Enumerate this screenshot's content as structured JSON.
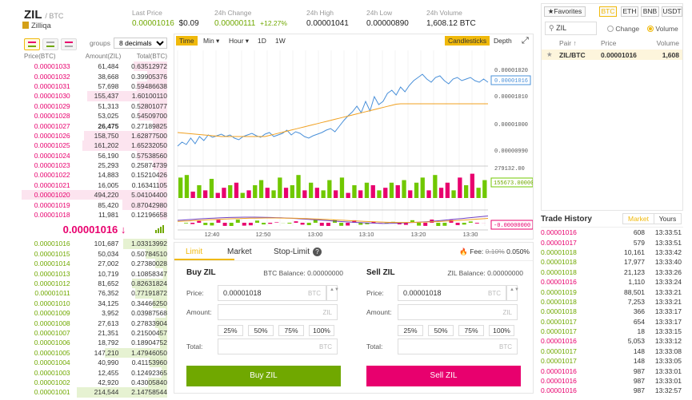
{
  "header": {
    "symbol": "ZIL",
    "quote": "/ BTC",
    "name": "Zilliqa",
    "stats": [
      {
        "label": "Last Price",
        "value": "0.00001016",
        "extra": "$0.09",
        "color": "green"
      },
      {
        "label": "24h Change",
        "value": "0.00000111",
        "extra": "+12.27%",
        "color": "green"
      },
      {
        "label": "24h High",
        "value": "0.00001041",
        "extra": "",
        "color": ""
      },
      {
        "label": "24h Low",
        "value": "0.00000890",
        "extra": "",
        "color": ""
      },
      {
        "label": "24h Volume",
        "value": "1,608.12 BTC",
        "extra": "",
        "color": ""
      }
    ]
  },
  "orderbook": {
    "groups_label": "groups",
    "groups_value": "8 decimals",
    "headers": [
      "Price(BTC)",
      "Amount(ZIL)",
      "Total(BTC)"
    ],
    "asks": [
      [
        "0.00001033",
        "61,484",
        "0.63512972"
      ],
      [
        "0.00001032",
        "38,668",
        "0.39905376"
      ],
      [
        "0.00001031",
        "57,698",
        "0.59486638"
      ],
      [
        "0.00001030",
        "155,437",
        "1.60100110"
      ],
      [
        "0.00001029",
        "51,313",
        "0.52801077"
      ],
      [
        "0.00001028",
        "53,025",
        "0.54509700"
      ],
      [
        "0.00001027",
        "26,475",
        "0.27189825"
      ],
      [
        "0.00001026",
        "158,750",
        "1.62877500"
      ],
      [
        "0.00001025",
        "161,202",
        "1.65232050"
      ],
      [
        "0.00001024",
        "56,190",
        "0.57538560"
      ],
      [
        "0.00001023",
        "25,293",
        "0.25874739"
      ],
      [
        "0.00001022",
        "14,883",
        "0.15210426"
      ],
      [
        "0.00001021",
        "16,005",
        "0.16341105"
      ],
      [
        "0.00001020",
        "494,220",
        "5.04104400"
      ],
      [
        "0.00001019",
        "85,420",
        "0.87042980"
      ],
      [
        "0.00001018",
        "11,981",
        "0.12196658"
      ]
    ],
    "ask_depth": [
      0.23,
      0.14,
      0.21,
      0.55,
      0.19,
      0.2,
      0.1,
      0.57,
      0.58,
      0.21,
      0.1,
      0.06,
      0.06,
      1,
      0.31,
      0.05
    ],
    "last_price": "0.00001016 ↓",
    "bids": [
      [
        "0.00001016",
        "101,687",
        "1.03313992"
      ],
      [
        "0.00001015",
        "50,034",
        "0.50784510"
      ],
      [
        "0.00001014",
        "27,002",
        "0.27380028"
      ],
      [
        "0.00001013",
        "10,719",
        "0.10858347"
      ],
      [
        "0.00001012",
        "81,652",
        "0.82631824"
      ],
      [
        "0.00001011",
        "76,352",
        "0.77191872"
      ],
      [
        "0.00001010",
        "34,125",
        "0.34466250"
      ],
      [
        "0.00001009",
        "3,952",
        "0.03987568"
      ],
      [
        "0.00001008",
        "27,613",
        "0.27833904"
      ],
      [
        "0.00001007",
        "21,351",
        "0.21500457"
      ],
      [
        "0.00001006",
        "18,792",
        "0.18904752"
      ],
      [
        "0.00001005",
        "147,210",
        "1.47946050"
      ],
      [
        "0.00001004",
        "40,990",
        "0.41153960"
      ],
      [
        "0.00001003",
        "12,455",
        "0.12492365"
      ],
      [
        "0.00001002",
        "42,920",
        "0.43005840"
      ],
      [
        "0.00001001",
        "214,544",
        "2.14758544"
      ]
    ],
    "bid_depth": [
      0.3,
      0.15,
      0.08,
      0.03,
      0.24,
      0.22,
      0.1,
      0.01,
      0.08,
      0.06,
      0.05,
      0.43,
      0.12,
      0.04,
      0.13,
      0.62
    ]
  },
  "chart": {
    "tabs": [
      "Time",
      "Min",
      "Hour",
      "1D",
      "1W"
    ],
    "right_tabs": [
      "Candlesticks",
      "Depth"
    ],
    "price_ticks": [
      "0.00001020",
      "0.00001010",
      "0.00001000",
      "0.00000990"
    ],
    "current_price": "0.00001016",
    "vol_ticks": [
      "279132.00",
      "155673.00000"
    ],
    "macd_value": "-0.00000000",
    "time_ticks": [
      "12:40",
      "12:50",
      "13:00",
      "13:10",
      "13:20",
      "13:30"
    ]
  },
  "trade": {
    "tabs": [
      "Limit",
      "Market",
      "Stop-Limit"
    ],
    "fee_label": "Fee:",
    "fee_old": "0.10%",
    "fee_new": "0.050%",
    "buy": {
      "title": "Buy ZIL",
      "balance": "BTC Balance: 0.00000000",
      "price_label": "Price:",
      "price": "0.00001018",
      "price_unit": "BTC",
      "amount_label": "Amount:",
      "amount_unit": "ZIL",
      "total_label": "Total:",
      "total_unit": "BTC",
      "button": "Buy ZIL"
    },
    "sell": {
      "title": "Sell ZIL",
      "balance": "ZIL Balance: 0.00000000",
      "price_label": "Price:",
      "price": "0.00001018",
      "price_unit": "BTC",
      "amount_label": "Amount:",
      "amount_unit": "ZIL",
      "total_label": "Total:",
      "total_unit": "BTC",
      "button": "Sell ZIL"
    },
    "percents": [
      "25%",
      "50%",
      "75%",
      "100%"
    ]
  },
  "market": {
    "tabs": [
      "Favorites",
      "BTC",
      "ETH",
      "BNB",
      "USDT"
    ],
    "search": "ZIL",
    "radio_change": "Change",
    "radio_volume": "Volume",
    "headers": [
      "Pair ↑",
      "Price",
      "Volume"
    ],
    "rows": [
      [
        "ZIL/BTC",
        "0.00001016",
        "1,608"
      ]
    ]
  },
  "history": {
    "title": "Trade History",
    "tabs": [
      "Market",
      "Yours"
    ],
    "rows": [
      [
        "0.00001016",
        "608",
        "13:33:51",
        "red"
      ],
      [
        "0.00001017",
        "579",
        "13:33:51",
        "red"
      ],
      [
        "0.00001018",
        "10,161",
        "13:33:42",
        "green"
      ],
      [
        "0.00001018",
        "17,977",
        "13:33:40",
        "green"
      ],
      [
        "0.00001018",
        "21,123",
        "13:33:26",
        "green"
      ],
      [
        "0.00001016",
        "1,110",
        "13:33:24",
        "red"
      ],
      [
        "0.00001019",
        "88,501",
        "13:33:21",
        "green"
      ],
      [
        "0.00001018",
        "7,253",
        "13:33:21",
        "green"
      ],
      [
        "0.00001018",
        "366",
        "13:33:17",
        "green"
      ],
      [
        "0.00001017",
        "654",
        "13:33:17",
        "green"
      ],
      [
        "0.00001017",
        "18",
        "13:33:15",
        "green"
      ],
      [
        "0.00001016",
        "5,053",
        "13:33:12",
        "red"
      ],
      [
        "0.00001017",
        "148",
        "13:33:08",
        "green"
      ],
      [
        "0.00001017",
        "148",
        "13:33:05",
        "green"
      ],
      [
        "0.00001016",
        "987",
        "13:33:01",
        "red"
      ],
      [
        "0.00001016",
        "987",
        "13:33:01",
        "red"
      ],
      [
        "0.00001016",
        "987",
        "13:32:57",
        "red"
      ]
    ]
  }
}
